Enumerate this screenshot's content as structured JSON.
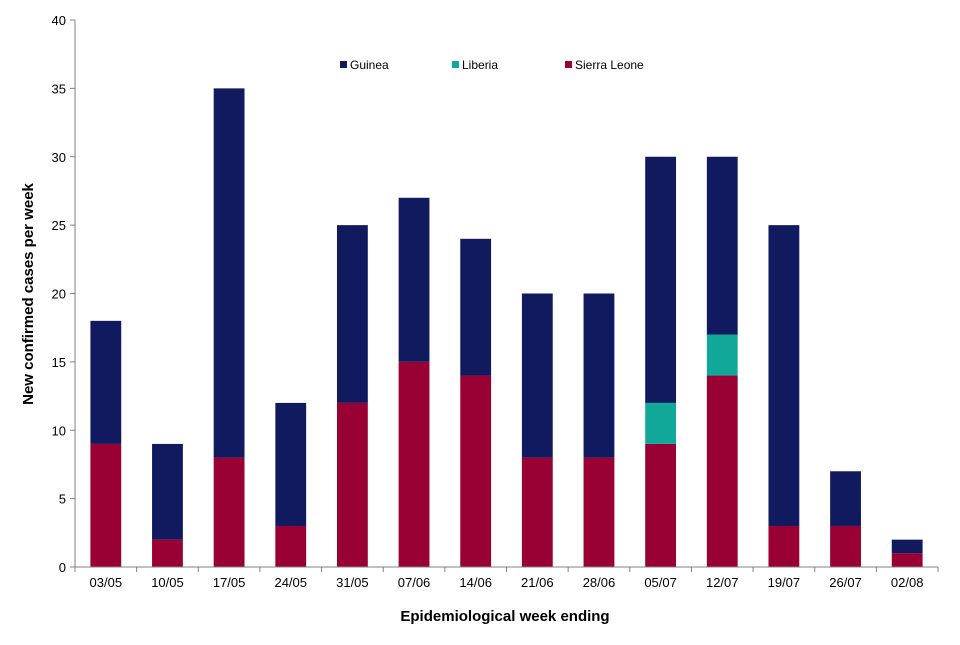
{
  "chart_data": {
    "type": "bar",
    "stacked": true,
    "title": "",
    "xlabel": "Epidemiological week ending",
    "ylabel": "New confirmed cases per week",
    "ylim": [
      0,
      40
    ],
    "yticks": [
      0,
      5,
      10,
      15,
      20,
      25,
      30,
      35,
      40
    ],
    "grid": false,
    "legend_position": "top",
    "categories": [
      "03/05",
      "10/05",
      "17/05",
      "24/05",
      "31/05",
      "07/06",
      "14/06",
      "21/06",
      "28/06",
      "05/07",
      "12/07",
      "19/07",
      "26/07",
      "02/08"
    ],
    "series": [
      {
        "name": "Sierra Leone",
        "color": "#990033",
        "values": [
          9,
          2,
          8,
          3,
          12,
          15,
          14,
          8,
          8,
          9,
          14,
          3,
          3,
          1
        ]
      },
      {
        "name": "Liberia",
        "color": "#11A899",
        "values": [
          0,
          0,
          0,
          0,
          0,
          0,
          0,
          0,
          0,
          3,
          3,
          0,
          0,
          0
        ]
      },
      {
        "name": "Guinea",
        "color": "#111A5E",
        "values": [
          9,
          7,
          27,
          9,
          13,
          12,
          10,
          12,
          12,
          18,
          13,
          22,
          4,
          1
        ]
      }
    ],
    "legend_order": [
      "Guinea",
      "Liberia",
      "Sierra Leone"
    ]
  }
}
